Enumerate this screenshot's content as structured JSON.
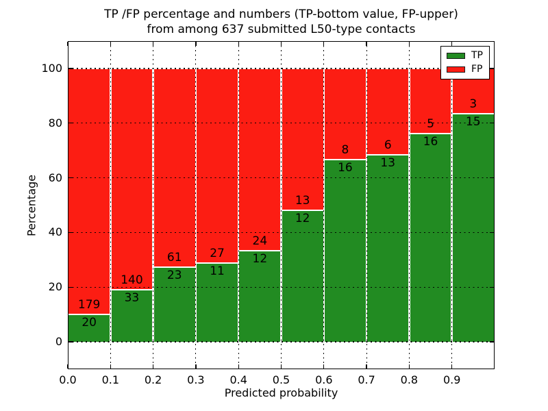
{
  "chart_data": {
    "type": "bar",
    "stacked": true,
    "normalized_to_percent": true,
    "title_lines": [
      "TP /FP percentage and numbers (TP-bottom value, FP-upper)",
      "from among 637 submitted L50-type contacts"
    ],
    "xlabel": "Predicted probability",
    "ylabel": "Percentage",
    "xlim": [
      0.0,
      1.0
    ],
    "ylim": [
      -10,
      110
    ],
    "x_tick_labels": [
      "0.0",
      "0.1",
      "0.2",
      "0.3",
      "0.4",
      "0.5",
      "0.6",
      "0.7",
      "0.8",
      "0.9"
    ],
    "x_tick_values": [
      0.0,
      0.1,
      0.2,
      0.3,
      0.4,
      0.5,
      0.6,
      0.7,
      0.8,
      0.9
    ],
    "y_tick_values": [
      0,
      20,
      40,
      60,
      80,
      100
    ],
    "grid": true,
    "legend_position": "upper right",
    "bins": [
      {
        "range": [
          0.0,
          0.1
        ],
        "tp": 20,
        "fp": 179
      },
      {
        "range": [
          0.1,
          0.2
        ],
        "tp": 33,
        "fp": 140
      },
      {
        "range": [
          0.2,
          0.3
        ],
        "tp": 23,
        "fp": 61
      },
      {
        "range": [
          0.3,
          0.4
        ],
        "tp": 11,
        "fp": 27
      },
      {
        "range": [
          0.4,
          0.5
        ],
        "tp": 12,
        "fp": 24
      },
      {
        "range": [
          0.5,
          0.6
        ],
        "tp": 12,
        "fp": 13
      },
      {
        "range": [
          0.6,
          0.7
        ],
        "tp": 16,
        "fp": 8
      },
      {
        "range": [
          0.7,
          0.8
        ],
        "tp": 13,
        "fp": 6
      },
      {
        "range": [
          0.8,
          0.9
        ],
        "tp": 16,
        "fp": 5
      },
      {
        "range": [
          0.9,
          1.0
        ],
        "tp": 15,
        "fp": 3
      }
    ],
    "series": [
      {
        "name": "TP",
        "color": "#228b22"
      },
      {
        "name": "FP",
        "color": "#fc1d13"
      }
    ]
  }
}
